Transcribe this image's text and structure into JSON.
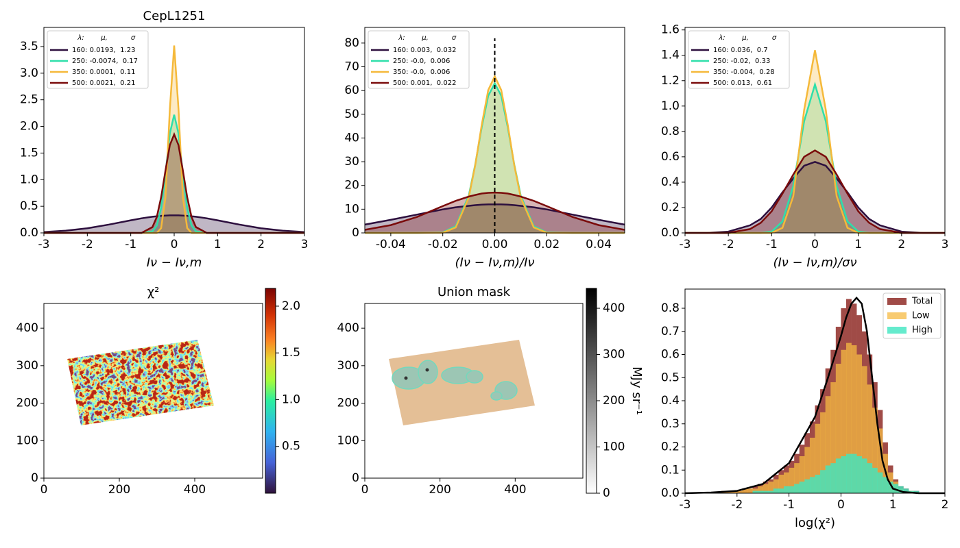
{
  "chart_data": [
    {
      "type": "line",
      "title": "CepL1251",
      "xlabel": "Iν − Iν,m",
      "xlim": [
        -3,
        3
      ],
      "ylim": [
        0,
        3.86
      ],
      "xticks": [
        -3,
        -2,
        -1,
        0,
        1,
        2,
        3
      ],
      "yticks": [
        {
          "value": 0,
          "label": "0.0"
        },
        0.5,
        {
          "value": 1,
          "label": "1.0"
        },
        1.5,
        {
          "value": 2,
          "label": "2.0"
        },
        2.5,
        {
          "value": 3,
          "label": "3.0"
        },
        3.5
      ],
      "legend_header": [
        "λ:",
        "μ,",
        "σ"
      ],
      "x": [
        -3,
        -2.5,
        -2,
        -1.5,
        -1,
        -0.75,
        -0.5,
        -0.4,
        -0.3,
        -0.2,
        -0.1,
        0,
        0.1,
        0.2,
        0.3,
        0.4,
        0.5,
        0.75,
        1,
        1.5,
        2,
        2.5,
        3
      ],
      "series": [
        {
          "name": "160: 0.0193,  1.23",
          "color": "#2d0f3e",
          "values": [
            0.017,
            0.042,
            0.088,
            0.157,
            0.237,
            0.274,
            0.304,
            0.313,
            0.32,
            0.326,
            0.329,
            0.33,
            0.329,
            0.326,
            0.32,
            0.313,
            0.304,
            0.274,
            0.237,
            0.157,
            0.088,
            0.042,
            0.017
          ]
        },
        {
          "name": "250: -0.0074,  0.17",
          "color": "#2fdfaa",
          "values": [
            0,
            0,
            0,
            0,
            0,
            0,
            0.03,
            0.14,
            0.47,
            1.11,
            1.87,
            2.22,
            1.87,
            1.11,
            0.47,
            0.14,
            0.03,
            0,
            0,
            0,
            0,
            0,
            0
          ]
        },
        {
          "name": "350: 0.0001,  0.11",
          "color": "#f5b93a",
          "values": [
            0,
            0,
            0,
            0,
            0,
            0,
            0,
            0,
            0.09,
            0.67,
            2.33,
            3.52,
            2.33,
            0.67,
            0.09,
            0,
            0,
            0,
            0,
            0,
            0,
            0,
            0
          ]
        },
        {
          "name": "500: 0.0021,  0.21",
          "color": "#7a0b0b",
          "values": [
            0,
            0,
            0,
            0,
            0,
            0,
            0.11,
            0.3,
            0.67,
            1.17,
            1.65,
            1.85,
            1.65,
            1.17,
            0.67,
            0.3,
            0.11,
            0,
            0,
            0,
            0,
            0,
            0
          ]
        }
      ]
    },
    {
      "type": "line",
      "xlabel": "(Iν − Iν,m)/Iν",
      "xlim": [
        -0.05,
        0.05
      ],
      "ylim": [
        0,
        86.6
      ],
      "xticks": [
        -0.04,
        -0.02,
        {
          "value": 0,
          "label": "0.00"
        },
        0.02,
        0.04
      ],
      "yticks": [
        0,
        10,
        20,
        30,
        40,
        50,
        60,
        70,
        80
      ],
      "legend_header": [
        "λ:",
        "μ,",
        "σ"
      ],
      "vline": {
        "x": 0,
        "y": [
          0,
          82
        ],
        "color": "#000000"
      },
      "x": [
        -0.05,
        -0.04,
        -0.03,
        -0.02,
        -0.015,
        -0.01,
        -0.0075,
        -0.005,
        -0.0025,
        0,
        0.0025,
        0.005,
        0.0075,
        0.01,
        0.015,
        0.02,
        0.03,
        0.04,
        0.05
      ],
      "series": [
        {
          "name": "160: 0.003,  0.032",
          "color": "#2d0f3e",
          "values": [
            3.5,
            5.5,
            7.7,
            9.9,
            10.8,
            11.4,
            11.7,
            11.9,
            12,
            12,
            12,
            11.9,
            11.7,
            11.4,
            10.8,
            9.9,
            7.7,
            5.5,
            3.5
          ]
        },
        {
          "name": "250: -0.0,  0.006",
          "color": "#2fdfaa",
          "values": [
            0,
            0,
            0,
            0.2,
            2.8,
            15.7,
            28.9,
            44.5,
            57.8,
            63,
            57.8,
            44.5,
            28.9,
            15.7,
            2.8,
            0.2,
            0,
            0,
            0
          ]
        },
        {
          "name": "350: -0.0,  0.006",
          "color": "#f5b93a",
          "values": [
            0,
            0,
            0,
            0.1,
            2.3,
            14.9,
            28.6,
            45.5,
            60.2,
            66,
            60.2,
            45.5,
            28.6,
            14.9,
            2.3,
            0.1,
            0,
            0,
            0
          ]
        },
        {
          "name": "500: 0.001,  0.022",
          "color": "#7a0b0b",
          "values": [
            1.3,
            3.3,
            6.7,
            11.3,
            13.5,
            15.3,
            16,
            16.6,
            16.9,
            17,
            16.9,
            16.6,
            16,
            15.3,
            13.5,
            11.3,
            6.7,
            3.3,
            1.3
          ]
        }
      ]
    },
    {
      "type": "line",
      "xlabel": "(Iν − Iν,m)/σν",
      "xlim": [
        -3,
        3
      ],
      "ylim": [
        0,
        1.62
      ],
      "xticks": [
        -3,
        -2,
        -1,
        0,
        1,
        2,
        3
      ],
      "yticks": [
        {
          "value": 0,
          "label": "0.0"
        },
        0.2,
        0.4,
        0.6,
        0.8,
        {
          "value": 1,
          "label": "1.0"
        },
        1.2,
        1.4,
        1.6
      ],
      "legend_header": [
        "λ:",
        "μ,",
        "σ"
      ],
      "x": [
        -3,
        -2.5,
        -2,
        -1.5,
        -1.25,
        -1,
        -0.75,
        -0.5,
        -0.25,
        0,
        0.25,
        0.5,
        0.75,
        1,
        1.25,
        1.5,
        2,
        2.5,
        3
      ],
      "series": [
        {
          "name": "160: 0.036,  0.7",
          "color": "#2d0f3e",
          "values": [
            0,
            0,
            0.01,
            0.06,
            0.11,
            0.2,
            0.32,
            0.43,
            0.53,
            0.56,
            0.53,
            0.43,
            0.32,
            0.2,
            0.11,
            0.06,
            0.01,
            0,
            0
          ]
        },
        {
          "name": "250: -0.02,  0.33",
          "color": "#2fdfaa",
          "values": [
            0,
            0,
            0,
            0,
            0,
            0.01,
            0.09,
            0.37,
            0.88,
            1.17,
            0.88,
            0.37,
            0.09,
            0.01,
            0,
            0,
            0,
            0,
            0
          ]
        },
        {
          "name": "350: -0.004,  0.28",
          "color": "#f5b93a",
          "values": [
            0,
            0,
            0,
            0,
            0,
            0,
            0.04,
            0.29,
            0.97,
            1.44,
            0.97,
            0.29,
            0.04,
            0,
            0,
            0,
            0,
            0,
            0
          ]
        },
        {
          "name": "500: 0.013,  0.61",
          "color": "#7a0b0b",
          "values": [
            0,
            0,
            0,
            0.03,
            0.08,
            0.17,
            0.31,
            0.46,
            0.6,
            0.65,
            0.6,
            0.46,
            0.31,
            0.17,
            0.08,
            0.03,
            0,
            0,
            0
          ]
        }
      ]
    },
    {
      "type": "image",
      "title": "χ²",
      "xlim": [
        0,
        580
      ],
      "ylim": [
        0,
        466
      ],
      "xticks": [
        0,
        200,
        400
      ],
      "yticks": [
        0,
        100,
        200,
        300,
        400
      ],
      "colorbar": {
        "cmap": "turbo",
        "lim": [
          0,
          2.19
        ],
        "ticks": [
          0.5,
          {
            "value": 1,
            "label": "1.0"
          },
          1.5,
          {
            "value": 2,
            "label": "2.0"
          }
        ]
      }
    },
    {
      "type": "image",
      "title": "Union mask",
      "xlim": [
        0,
        580
      ],
      "ylim": [
        0,
        466
      ],
      "xticks": [
        0,
        200,
        400
      ],
      "yticks": [
        0,
        100,
        200,
        300,
        400
      ],
      "colorbar": {
        "cmap": "gray",
        "lim": [
          0,
          443
        ],
        "ticks": [
          0,
          100,
          200,
          300,
          400
        ],
        "label": "MJy sr⁻¹"
      }
    },
    {
      "type": "histogram",
      "xlabel": "log(χ²)",
      "xlim": [
        -3,
        2
      ],
      "ylim": [
        0,
        0.883
      ],
      "legend": "upper right",
      "xticks": [
        -3,
        -2,
        -1,
        0,
        1,
        2
      ],
      "yticks": [
        {
          "value": 0,
          "label": "0.0"
        },
        0.1,
        0.2,
        0.3,
        0.4,
        0.5,
        0.6,
        0.7,
        0.8
      ],
      "bins": [
        -3,
        -2.9,
        -2.8,
        -2.7,
        -2.6,
        -2.5,
        -2.4,
        -2.3,
        -2.2,
        -2.1,
        -2,
        -1.9,
        -1.8,
        -1.7,
        -1.6,
        -1.5,
        -1.4,
        -1.3,
        -1.2,
        -1.1,
        -1,
        -0.9,
        -0.8,
        -0.7,
        -0.6,
        -0.5,
        -0.4,
        -0.3,
        -0.2,
        -0.1,
        0,
        0.1,
        0.2,
        0.3,
        0.4,
        0.5,
        0.6,
        0.7,
        0.8,
        0.9,
        1,
        1.1,
        1.2,
        1.3,
        1.4,
        1.5,
        1.6,
        1.7,
        1.8,
        1.9,
        2
      ],
      "series": [
        {
          "name": "Total",
          "color": "#a04b47",
          "alpha": 1,
          "values": [
            0,
            0,
            0,
            0,
            0,
            0,
            0,
            0.01,
            0.01,
            0.01,
            0.01,
            0.02,
            0.02,
            0.03,
            0.04,
            0.05,
            0.06,
            0.08,
            0.1,
            0.12,
            0.14,
            0.17,
            0.21,
            0.26,
            0.31,
            0.38,
            0.45,
            0.54,
            0.62,
            0.72,
            0.8,
            0.84,
            0.82,
            0.77,
            0.7,
            0.6,
            0.48,
            0.36,
            0.22,
            0.12,
            0.06,
            0.03,
            0.02,
            0.01,
            0.01,
            0,
            0,
            0,
            0,
            0
          ]
        },
        {
          "name": "Low",
          "color": "#f5b942",
          "alpha": 0.75,
          "values": [
            0,
            0,
            0,
            0,
            0,
            0,
            0,
            0.01,
            0.01,
            0.01,
            0.01,
            0.02,
            0.02,
            0.02,
            0.03,
            0.04,
            0.05,
            0.06,
            0.08,
            0.09,
            0.11,
            0.13,
            0.16,
            0.2,
            0.24,
            0.3,
            0.35,
            0.42,
            0.48,
            0.56,
            0.62,
            0.65,
            0.64,
            0.6,
            0.55,
            0.47,
            0.37,
            0.28,
            0.17,
            0.09,
            0.05,
            0.02,
            0.01,
            0.01,
            0,
            0,
            0,
            0,
            0,
            0
          ]
        },
        {
          "name": "High",
          "color": "#3ee6c0",
          "alpha": 0.8,
          "values": [
            0,
            0,
            0,
            0,
            0,
            0,
            0,
            0,
            0,
            0,
            0,
            0,
            0,
            0.01,
            0.01,
            0.01,
            0.01,
            0.02,
            0.02,
            0.03,
            0.03,
            0.04,
            0.05,
            0.06,
            0.07,
            0.08,
            0.1,
            0.12,
            0.13,
            0.15,
            0.16,
            0.17,
            0.17,
            0.16,
            0.15,
            0.13,
            0.11,
            0.09,
            0.07,
            0.05,
            0.04,
            0.03,
            0.02,
            0.01,
            0.01,
            0,
            0,
            0,
            0,
            0
          ]
        }
      ],
      "line": {
        "color": "#000000",
        "x": [
          -3,
          -2.5,
          -2,
          -1.5,
          -1,
          -0.5,
          -0.25,
          0,
          0.1,
          0.2,
          0.3,
          0.4,
          0.5,
          0.6,
          0.7,
          0.8,
          0.9,
          1,
          1.2,
          1.5,
          2
        ],
        "values": [
          0,
          0.003,
          0.01,
          0.04,
          0.13,
          0.33,
          0.5,
          0.68,
          0.76,
          0.82,
          0.845,
          0.82,
          0.7,
          0.5,
          0.3,
          0.14,
          0.06,
          0.02,
          0.005,
          0,
          0
        ]
      }
    }
  ]
}
